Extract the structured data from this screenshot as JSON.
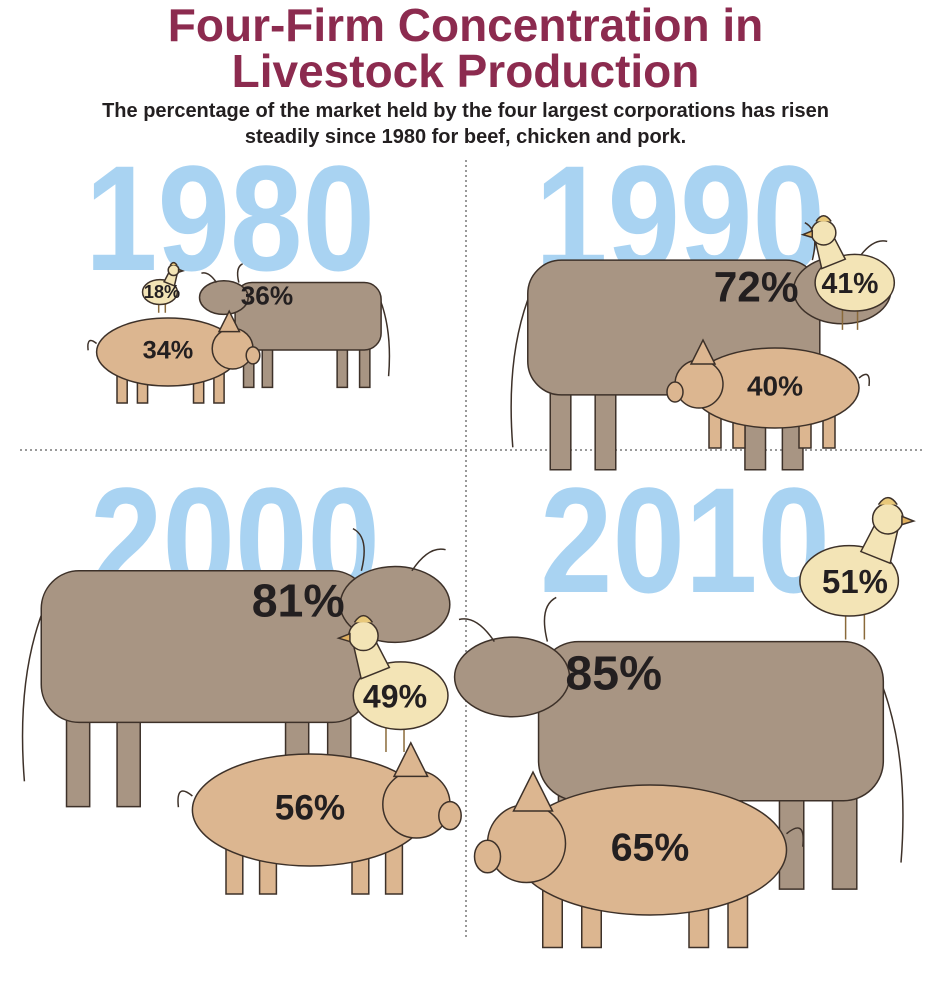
{
  "chart_data": {
    "type": "pictograph",
    "title": "Four-Firm Concentration in Livestock Production",
    "subtitle": "The percentage of the market held by the four largest corporations has risen steadily since 1980 for beef, chicken and pork.",
    "categories": [
      "1980",
      "1990",
      "2000",
      "2010"
    ],
    "category_color": "#a9d3f2",
    "series": [
      {
        "color": "#a89583",
        "values": [
          36,
          72,
          81,
          85
        ],
        "value_labels": [
          "36%",
          "72%",
          "81%",
          "85%"
        ]
      },
      {
        "color": "#f3e4b6",
        "values": [
          18,
          41,
          49,
          51
        ],
        "value_labels": [
          "18%",
          "41%",
          "49%",
          "51%"
        ]
      },
      {
        "color": "#dcb690",
        "values": [
          34,
          40,
          56,
          65
        ],
        "value_labels": [
          "34%",
          "40%",
          "56%",
          "65%"
        ]
      }
    ]
  }
}
